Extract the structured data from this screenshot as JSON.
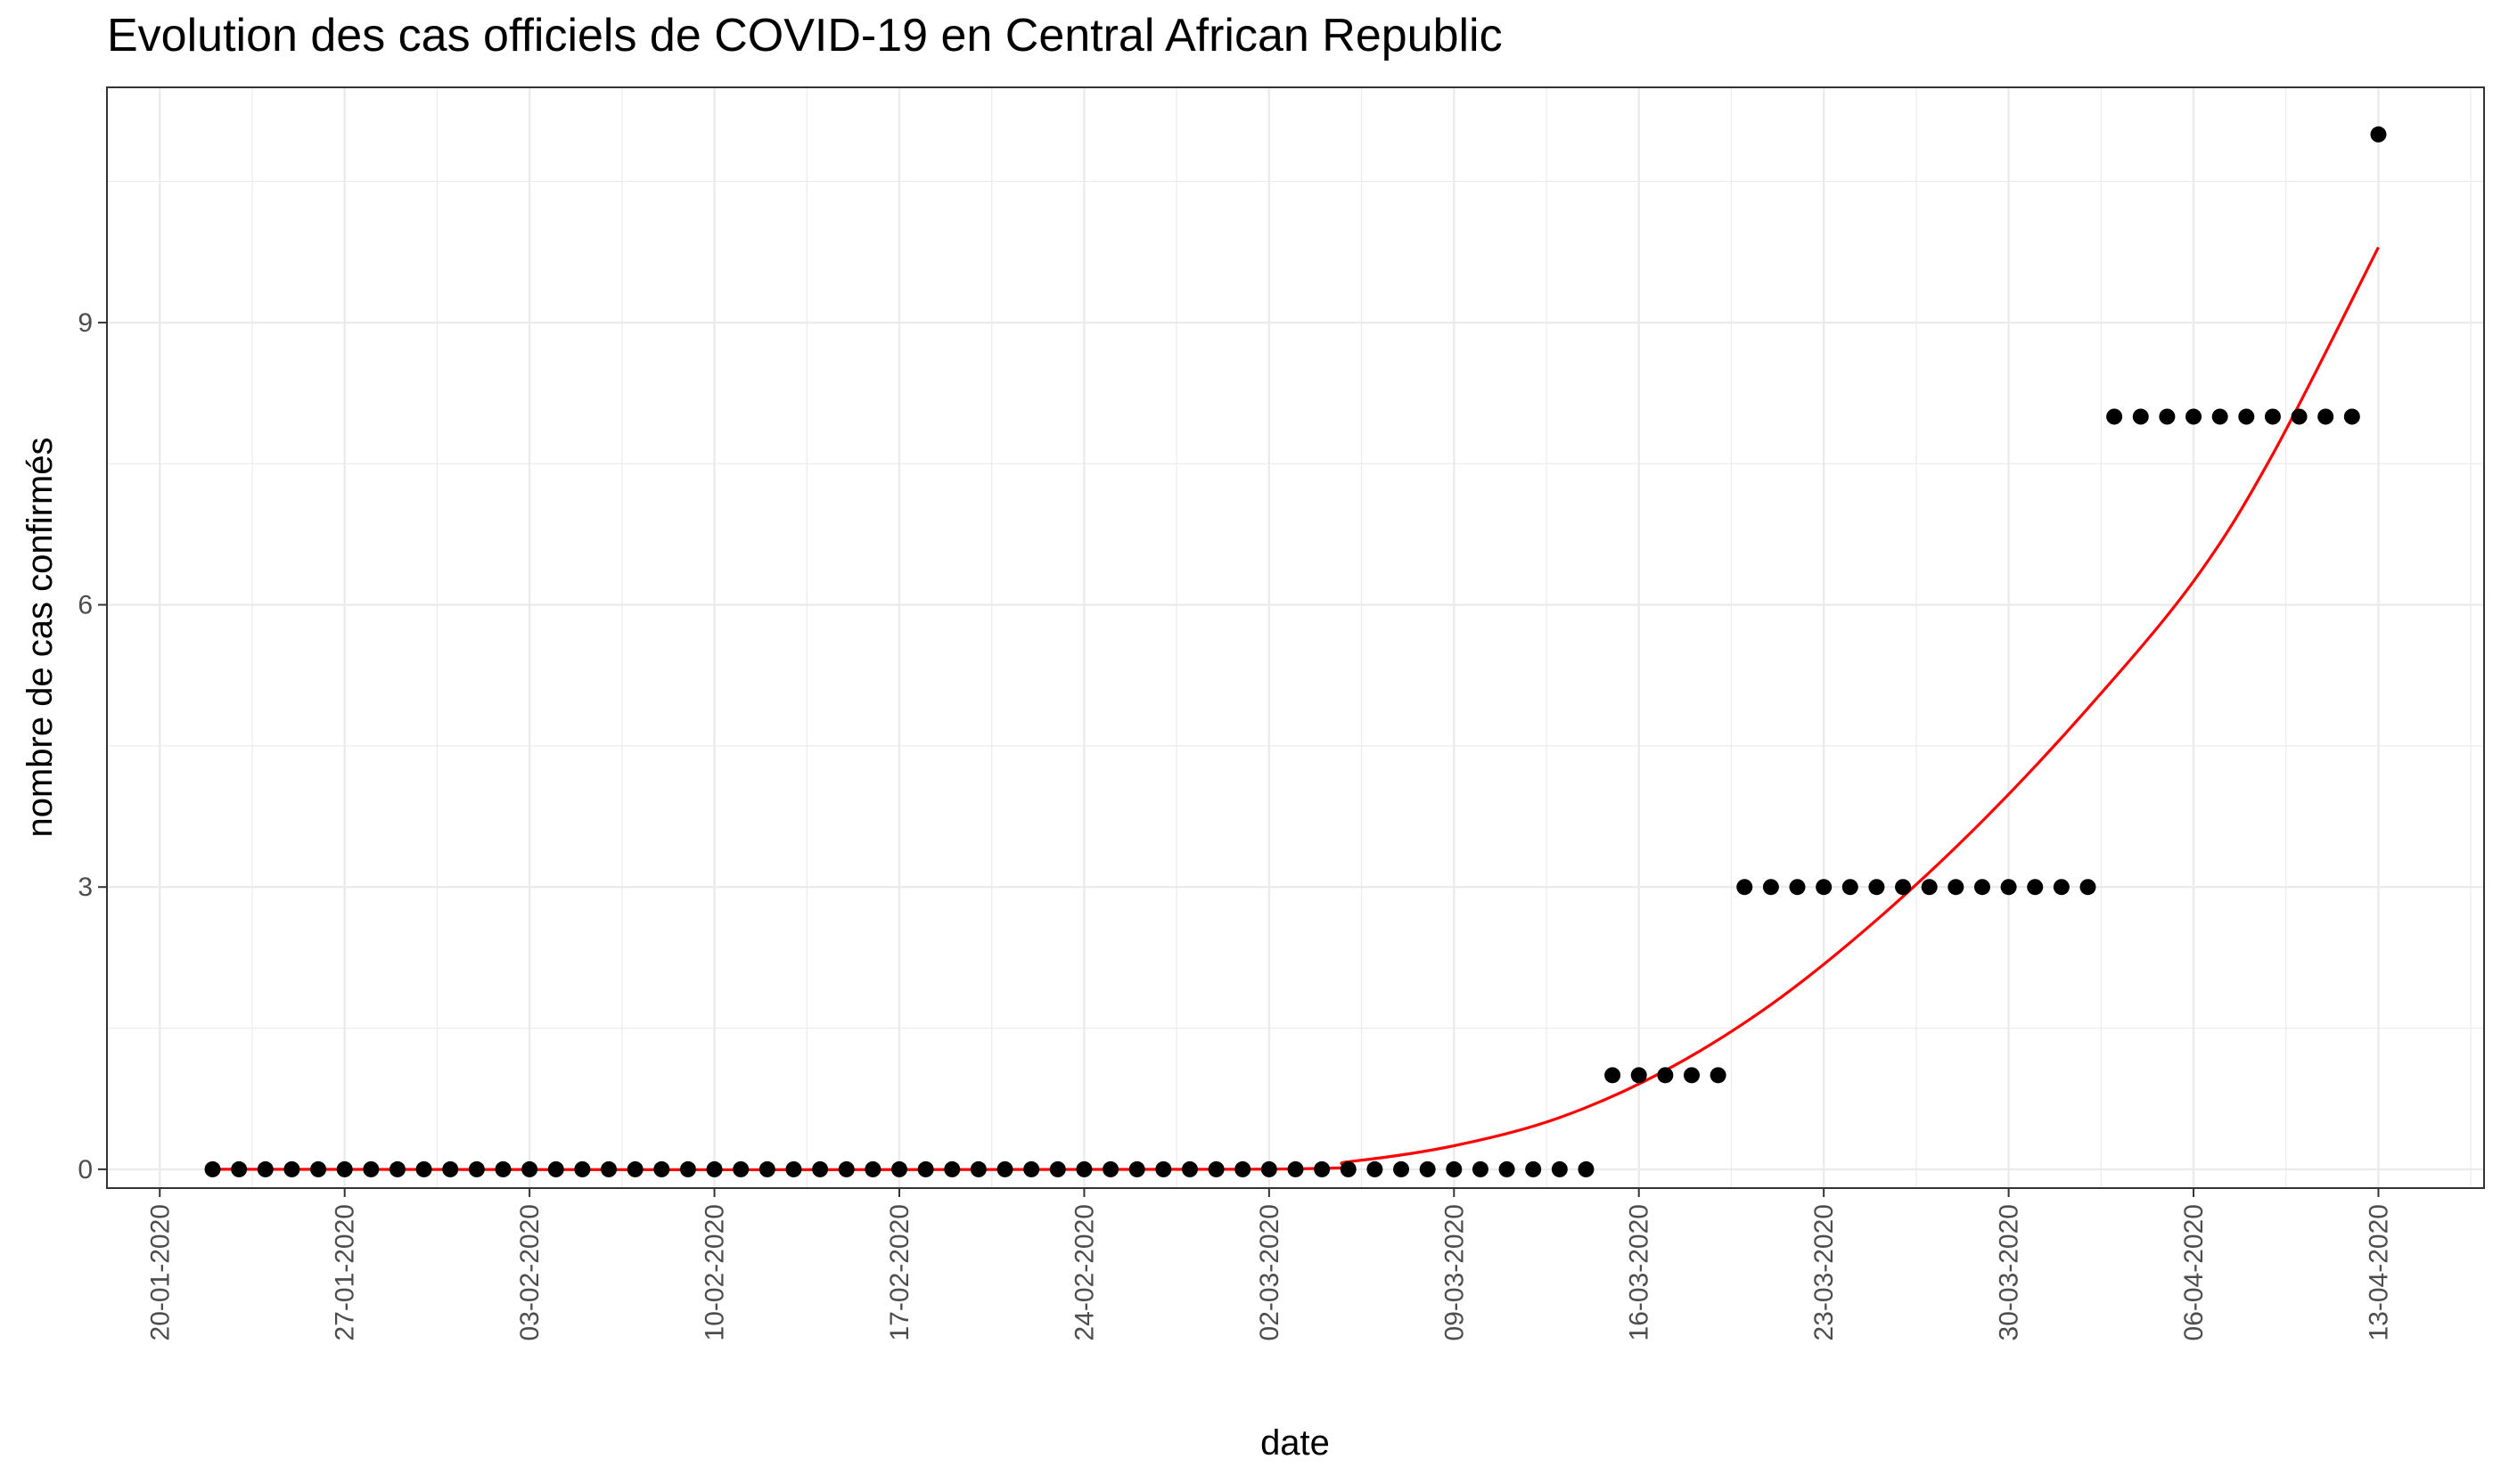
{
  "chart_data": {
    "type": "scatter",
    "title": "Evolution des cas officiels de COVID-19 en Central African Republic",
    "xlabel": "date",
    "ylabel": "nombre de cas confirmés",
    "x_ticks": [
      "20-01-2020",
      "27-01-2020",
      "03-02-2020",
      "10-02-2020",
      "17-02-2020",
      "24-02-2020",
      "02-03-2020",
      "09-03-2020",
      "16-03-2020",
      "23-03-2020",
      "30-03-2020",
      "06-04-2020",
      "13-04-2020"
    ],
    "y_ticks": [
      "0",
      "3",
      "6",
      "9"
    ],
    "xlim": [
      "18-01-2020",
      "17-04-2020"
    ],
    "ylim": [
      -0.2,
      11.5
    ],
    "grid": true,
    "legend": "none",
    "colors": {
      "points": "#000000",
      "fit": "#ff0000",
      "grid": "#ebebeb",
      "panel_border": "#333333"
    },
    "series": [
      {
        "kind": "points",
        "segments": [
          {
            "from": "22-01-2020",
            "to": "14-03-2020",
            "value": 0
          },
          {
            "from": "15-03-2020",
            "to": "19-03-2020",
            "value": 1
          },
          {
            "from": "20-03-2020",
            "to": "02-04-2020",
            "value": 3
          },
          {
            "from": "03-04-2020",
            "to": "12-04-2020",
            "value": 8
          },
          {
            "from": "13-04-2020",
            "to": "13-04-2020",
            "value": 11
          }
        ]
      },
      {
        "kind": "fit-line",
        "points": [
          [
            "22-01-2020",
            0
          ],
          [
            "01-03-2020",
            0.0
          ],
          [
            "05-03-2020",
            0.08
          ],
          [
            "09-03-2020",
            0.25
          ],
          [
            "13-03-2020",
            0.55
          ],
          [
            "17-03-2020",
            1.05
          ],
          [
            "21-03-2020",
            1.75
          ],
          [
            "25-03-2020",
            2.65
          ],
          [
            "29-03-2020",
            3.7
          ],
          [
            "02-04-2020",
            4.9
          ],
          [
            "06-04-2020",
            6.25
          ],
          [
            "09-04-2020",
            7.6
          ],
          [
            "13-04-2020",
            9.8
          ]
        ]
      }
    ]
  }
}
